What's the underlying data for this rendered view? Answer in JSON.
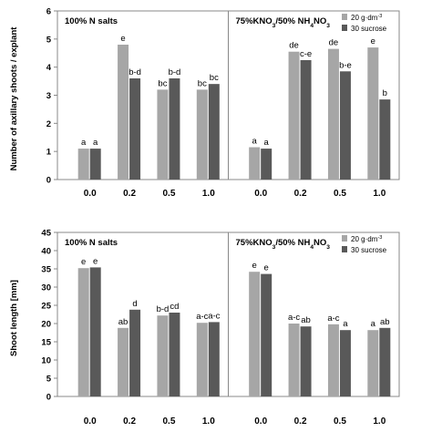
{
  "chart_data": [
    {
      "type": "bar",
      "ylabel": "Number of axillary shoots / explant",
      "ylim": [
        0,
        6
      ],
      "yticks": [
        "0",
        "1",
        "2",
        "3",
        "4",
        "5",
        "6"
      ],
      "panel_titles": [
        "100% N  salts",
        "75%KNO3/50% NH4NO3"
      ],
      "legend": [
        "20  g·dm-3",
        "30 sucrose"
      ],
      "series_colors": [
        "#a6a6a6",
        "#595959"
      ],
      "groups": [
        {
          "categories": [
            "0.0",
            "0.2",
            "0.5",
            "1.0"
          ],
          "series": [
            {
              "values": [
                1.1,
                4.8,
                3.2,
                3.2
              ],
              "labels": [
                "a",
                "e",
                "bc",
                "bc"
              ]
            },
            {
              "values": [
                1.1,
                3.6,
                3.6,
                3.4
              ],
              "labels": [
                "a",
                "b-d",
                "b-d",
                "bc"
              ]
            }
          ]
        },
        {
          "categories": [
            "0.0",
            "0.2",
            "0.5",
            "1.0"
          ],
          "series": [
            {
              "values": [
                1.15,
                4.55,
                4.65,
                4.7
              ],
              "labels": [
                "a",
                "de",
                "de",
                "e"
              ]
            },
            {
              "values": [
                1.1,
                4.25,
                3.85,
                2.85
              ],
              "labels": [
                "a",
                "c-e",
                "b-e",
                "b"
              ]
            }
          ]
        }
      ]
    },
    {
      "type": "bar",
      "ylabel": "Shoot length [mm]",
      "ylim": [
        0,
        45
      ],
      "yticks": [
        "0",
        "5",
        "10",
        "15",
        "20",
        "25",
        "30",
        "35",
        "40",
        "45"
      ],
      "panel_titles": [
        "100% N  salts",
        "75%KNO3/50% NH4NO3"
      ],
      "legend": [
        "20  g·dm-3",
        "30 sucrose"
      ],
      "series_colors": [
        "#a6a6a6",
        "#595959"
      ],
      "groups": [
        {
          "categories": [
            "0.0",
            "0.2",
            "0.5",
            "1.0"
          ],
          "series": [
            {
              "values": [
                35.2,
                18.8,
                22.2,
                20.2
              ],
              "labels": [
                "e",
                "ab",
                "b-d",
                "a-c"
              ]
            },
            {
              "values": [
                35.4,
                23.8,
                23.0,
                20.4
              ],
              "labels": [
                "e",
                "d",
                "cd",
                "a-c"
              ]
            }
          ]
        },
        {
          "categories": [
            "0.0",
            "0.2",
            "0.5",
            "1.0"
          ],
          "series": [
            {
              "values": [
                34.2,
                20.0,
                19.8,
                18.2
              ],
              "labels": [
                "e",
                "a-c",
                "a-c",
                "a"
              ]
            },
            {
              "values": [
                33.6,
                19.2,
                18.2,
                18.8
              ],
              "labels": [
                "e",
                "ab",
                "a",
                "ab"
              ]
            }
          ]
        }
      ]
    }
  ]
}
